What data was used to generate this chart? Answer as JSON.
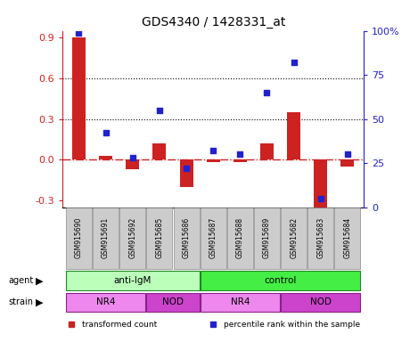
{
  "title": "GDS4340 / 1428331_at",
  "samples": [
    "GSM915690",
    "GSM915691",
    "GSM915692",
    "GSM915685",
    "GSM915686",
    "GSM915687",
    "GSM915688",
    "GSM915689",
    "GSM915682",
    "GSM915683",
    "GSM915684"
  ],
  "red_values": [
    0.9,
    0.03,
    -0.07,
    0.12,
    -0.2,
    -0.02,
    -0.02,
    0.12,
    0.35,
    -0.38,
    -0.05
  ],
  "blue_values": [
    99,
    42,
    28,
    55,
    22,
    32,
    30,
    65,
    82,
    5,
    30
  ],
  "red_color": "#cc2222",
  "blue_color": "#2222cc",
  "ylim_left": [
    -0.35,
    0.95
  ],
  "ylim_right": [
    0,
    100
  ],
  "yticks_left": [
    -0.3,
    0.0,
    0.3,
    0.6,
    0.9
  ],
  "yticks_right": [
    0,
    25,
    50,
    75,
    100
  ],
  "ytick_labels_right": [
    "0",
    "25",
    "50",
    "75",
    "100%"
  ],
  "hlines_dotted": [
    0.3,
    0.6
  ],
  "hline_dashdot": 0.0,
  "agent_label": "agent",
  "strain_label": "strain",
  "agent_groups": [
    {
      "label": "anti-IgM",
      "start": 0,
      "end": 5,
      "color": "#bbffbb"
    },
    {
      "label": "control",
      "start": 5,
      "end": 11,
      "color": "#44ee44"
    }
  ],
  "strain_groups": [
    {
      "label": "NR4",
      "start": 0,
      "end": 3,
      "color": "#ee88ee"
    },
    {
      "label": "NOD",
      "start": 3,
      "end": 5,
      "color": "#cc44cc"
    },
    {
      "label": "NR4",
      "start": 5,
      "end": 8,
      "color": "#ee88ee"
    },
    {
      "label": "NOD",
      "start": 8,
      "end": 11,
      "color": "#cc44cc"
    }
  ],
  "legend_items": [
    {
      "label": "transformed count",
      "color": "#cc2222"
    },
    {
      "label": "percentile rank within the sample",
      "color": "#2222cc"
    }
  ],
  "bar_width": 0.5,
  "square_size": 25
}
